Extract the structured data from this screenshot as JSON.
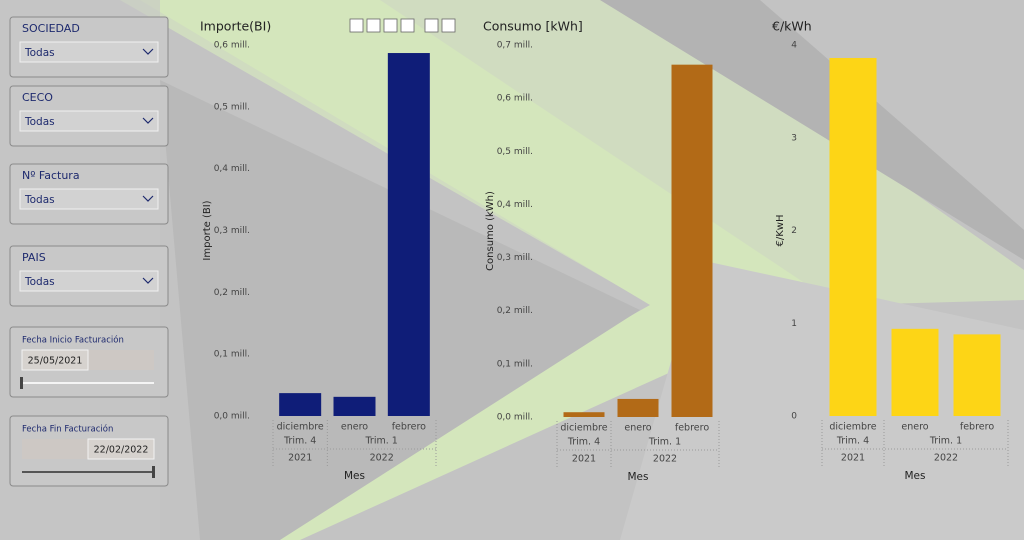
{
  "slicers": [
    {
      "label": "SOCIEDAD",
      "value": "Todas"
    },
    {
      "label": "CECO",
      "value": "Todas"
    },
    {
      "label": "Nº Factura",
      "value": "Todas"
    },
    {
      "label": "PAIS",
      "value": "Todas"
    }
  ],
  "date_slicers": [
    {
      "label": "Fecha Inicio Facturación",
      "value": "25/05/2021"
    },
    {
      "label": "Fecha Fin Facturación",
      "value": "22/02/2022"
    }
  ],
  "chart_data": [
    {
      "type": "bar",
      "title": "Importe(BI)",
      "y_label": "Importe (BI)",
      "x_label": "Mes",
      "categories": [
        "diciembre",
        "enero",
        "febrero"
      ],
      "quarters": [
        "Trim. 4",
        "Trim. 1"
      ],
      "years": [
        "2021",
        "2022"
      ],
      "values": [
        37000,
        31000,
        587000
      ],
      "color": "#0f1d78",
      "ylim": [
        0,
        600000
      ],
      "yticks": [
        {
          "value": 0,
          "label": "0,0 mill."
        },
        {
          "value": 100000,
          "label": "0,1 mill."
        },
        {
          "value": 200000,
          "label": "0,2 mill."
        },
        {
          "value": 300000,
          "label": "0,3 mill."
        },
        {
          "value": 400000,
          "label": "0,4 mill."
        },
        {
          "value": 500000,
          "label": "0,5 mill."
        },
        {
          "value": 600000,
          "label": "0,6 mill."
        }
      ]
    },
    {
      "type": "bar",
      "title": "Consumo [kWh]",
      "y_label": "Consumo (kWh)",
      "x_label": "Mes",
      "categories": [
        "diciembre",
        "enero",
        "febrero"
      ],
      "quarters": [
        "Trim. 4",
        "Trim. 1"
      ],
      "years": [
        "2021",
        "2022"
      ],
      "values": [
        9000,
        34000,
        663000
      ],
      "color": "#b26a17",
      "ylim": [
        0,
        700000
      ],
      "yticks": [
        {
          "value": 0,
          "label": "0,0 mill."
        },
        {
          "value": 100000,
          "label": "0,1 mill."
        },
        {
          "value": 200000,
          "label": "0,2 mill."
        },
        {
          "value": 300000,
          "label": "0,3 mill."
        },
        {
          "value": 400000,
          "label": "0,4 mill."
        },
        {
          "value": 500000,
          "label": "0,5 mill."
        },
        {
          "value": 600000,
          "label": "0,6 mill."
        },
        {
          "value": 700000,
          "label": "0,7 mill."
        }
      ]
    },
    {
      "type": "bar",
      "title": "€/kWh",
      "y_label": "€/KwH",
      "x_label": "Mes",
      "categories": [
        "diciembre",
        "enero",
        "febrero"
      ],
      "quarters": [
        "Trim. 4",
        "Trim. 1"
      ],
      "years": [
        "2021",
        "2022"
      ],
      "values": [
        3.86,
        0.94,
        0.88
      ],
      "color": "#fdd516",
      "ylim": [
        0,
        4
      ],
      "yticks": [
        0,
        1,
        2,
        3,
        4
      ]
    }
  ]
}
